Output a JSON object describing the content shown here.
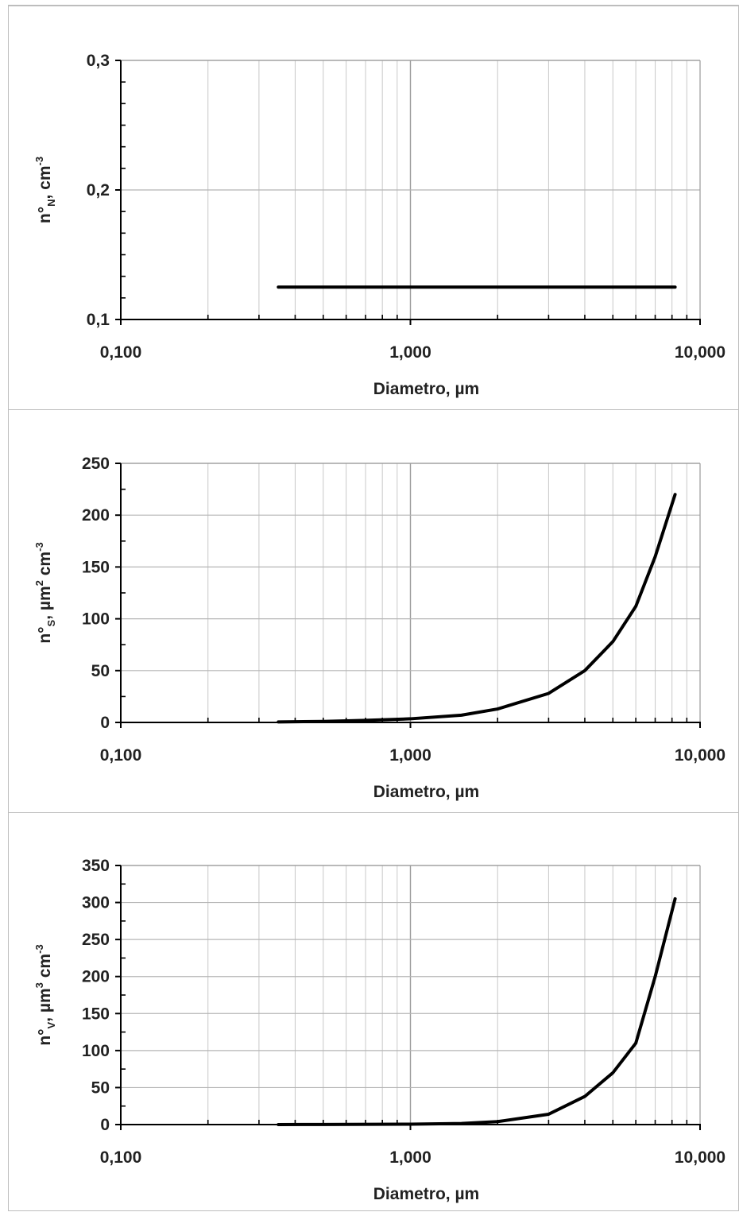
{
  "chart_data": [
    {
      "type": "line",
      "title": "",
      "xlabel": "Diametro, µm",
      "ylabel": {
        "base": "n°",
        "sub": "N",
        "rest": ", cm",
        "sup": "-3"
      },
      "x_scale": "log",
      "xlim": [
        0.1,
        10
      ],
      "ylim": [
        0.1,
        0.3
      ],
      "x_ticks": [
        0.1,
        1,
        10
      ],
      "x_tick_labels": [
        "0,100",
        "1,000",
        "10,000"
      ],
      "y_ticks": [
        0.1,
        0.2,
        0.3
      ],
      "y_tick_labels": [
        "0,1",
        "0,2",
        "0,3"
      ],
      "grid": true,
      "series": [
        {
          "x": [
            0.35,
            0.5,
            1,
            2,
            3,
            4,
            5,
            6,
            8.2
          ],
          "y": [
            0.125,
            0.125,
            0.125,
            0.125,
            0.125,
            0.125,
            0.125,
            0.125,
            0.125
          ]
        }
      ]
    },
    {
      "type": "line",
      "title": "",
      "xlabel": "Diametro, µm",
      "ylabel": {
        "base": "n°",
        "sub": "S",
        "rest": ", µm",
        "sup": "2",
        "rest2": " cm",
        "sup2": "-3"
      },
      "x_scale": "log",
      "xlim": [
        0.1,
        10
      ],
      "ylim": [
        0,
        250
      ],
      "x_ticks": [
        0.1,
        1,
        10
      ],
      "x_tick_labels": [
        "0,100",
        "1,000",
        "10,000"
      ],
      "y_ticks": [
        0,
        50,
        100,
        150,
        200,
        250
      ],
      "y_tick_labels": [
        "0",
        "50",
        "100",
        "150",
        "200",
        "250"
      ],
      "grid": true,
      "series": [
        {
          "x": [
            0.35,
            0.5,
            0.7,
            1,
            1.5,
            2,
            3,
            4,
            5,
            6,
            7,
            8.2
          ],
          "y": [
            0.5,
            1,
            2,
            3.5,
            7,
            13,
            28,
            50,
            78,
            112,
            160,
            220
          ]
        }
      ]
    },
    {
      "type": "line",
      "title": "",
      "xlabel": "Diametro, µm",
      "ylabel": {
        "base": "n°",
        "sub": "V",
        "rest": ", µm",
        "sup": "3",
        "rest2": " cm",
        "sup2": "-3"
      },
      "x_scale": "log",
      "xlim": [
        0.1,
        10
      ],
      "ylim": [
        0,
        350
      ],
      "x_ticks": [
        0.1,
        1,
        10
      ],
      "x_tick_labels": [
        "0,100",
        "1,000",
        "10,000"
      ],
      "y_ticks": [
        0,
        50,
        100,
        150,
        200,
        250,
        300,
        350
      ],
      "y_tick_labels": [
        "0",
        "50",
        "100",
        "150",
        "200",
        "250",
        "300",
        "350"
      ],
      "grid": true,
      "series": [
        {
          "x": [
            0.35,
            0.5,
            1,
            1.5,
            2,
            3,
            4,
            5,
            6,
            7,
            8.2
          ],
          "y": [
            0,
            0.2,
            0.5,
            1.5,
            4,
            14,
            38,
            70,
            110,
            200,
            305
          ]
        }
      ]
    }
  ]
}
